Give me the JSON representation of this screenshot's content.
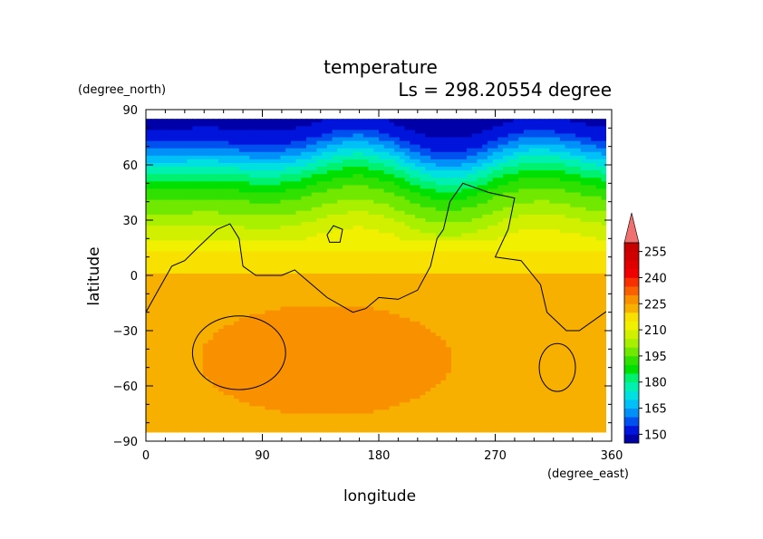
{
  "chart_data": {
    "type": "heatmap",
    "title": "temperature",
    "subtitle": "Ls = 298.20554 degree",
    "xlabel": "longitude",
    "ylabel": "latitude",
    "x_unit": "(degree_east)",
    "y_unit": "(degree_north)",
    "xlim": [
      0,
      360
    ],
    "ylim": [
      -90,
      90
    ],
    "x_ticks": [
      "0",
      "90",
      "180",
      "270",
      "360"
    ],
    "y_ticks": [
      "90",
      "60",
      "30",
      "0",
      "−30",
      "−60",
      "−90"
    ],
    "colorbar": {
      "labels": [
        "255",
        "240",
        "225",
        "210",
        "195",
        "180",
        "165",
        "150"
      ],
      "levels": [
        145,
        150,
        155,
        160,
        165,
        170,
        175,
        180,
        185,
        190,
        195,
        200,
        205,
        210,
        215,
        220,
        225,
        230,
        235,
        240,
        245,
        250,
        255,
        260
      ],
      "colors": [
        "#0000a8",
        "#0014dc",
        "#0050f0",
        "#0090f8",
        "#00c0f8",
        "#00e0e0",
        "#00f0b0",
        "#00f070",
        "#00e000",
        "#30e000",
        "#70e800",
        "#a8f000",
        "#d0f000",
        "#f0f000",
        "#f8e000",
        "#f8b000",
        "#f89000",
        "#f86000",
        "#f83000",
        "#f00000",
        "#e00000",
        "#d00000",
        "#c80000"
      ],
      "over_color": "#f07070"
    },
    "temperature_profile": {
      "latitudes": [
        85,
        75,
        70,
        65,
        60,
        55,
        50,
        45,
        40,
        35,
        30,
        25,
        20,
        15,
        10,
        5,
        0,
        -5,
        -10,
        -15,
        -20,
        -30,
        -40,
        -50,
        -60,
        -70,
        -80,
        -85
      ],
      "values_K": [
        148,
        153,
        160,
        167,
        175,
        182,
        188,
        193,
        197,
        200,
        204,
        207,
        210,
        214,
        217,
        219,
        220,
        221,
        221,
        222,
        222,
        222,
        222,
        222,
        221,
        220,
        220,
        220
      ]
    },
    "warm_region": {
      "value_K": 225,
      "lon_range": [
        40,
        235
      ],
      "lat_range": [
        -75,
        -15
      ]
    },
    "contour_line_color": "#000000"
  }
}
